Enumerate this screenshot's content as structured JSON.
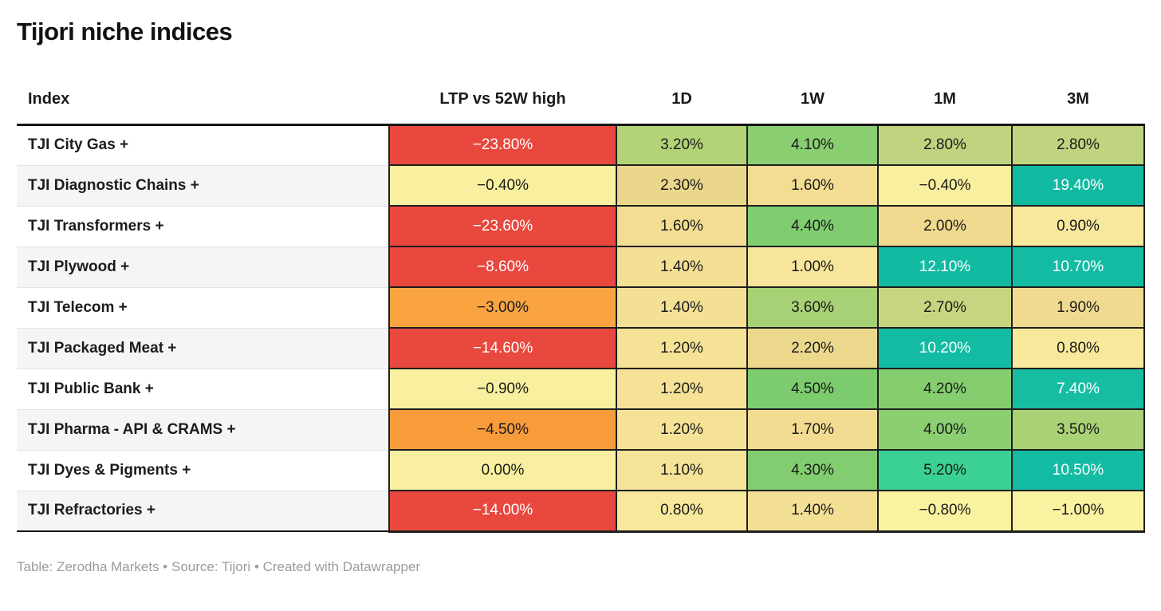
{
  "title": "Tijori niche indices",
  "footer": "Table: Zerodha Markets • Source: Tijori • Created with Datawrapper",
  "accent_colors": {
    "negative_strong": "#e8483e",
    "negative_mild": "#f9a441",
    "neutral": "#f8f09f",
    "positive_mild": "#b3d377",
    "positive_strong": "#14bba3",
    "header_rule": "#161616"
  },
  "table": {
    "columns": [
      "Index",
      "LTP vs 52W high",
      "1D",
      "1W",
      "1M",
      "3M"
    ],
    "rows": [
      {
        "index": "TJI City Gas +",
        "cells": [
          {
            "value": "−23.80%",
            "bg": "#e8483e",
            "fg": "#ffffff"
          },
          {
            "value": "3.20%",
            "bg": "#b3d377",
            "fg": "#1a1a1a"
          },
          {
            "value": "4.10%",
            "bg": "#89ce71",
            "fg": "#1a1a1a"
          },
          {
            "value": "2.80%",
            "bg": "#c0d37e",
            "fg": "#1a1a1a"
          },
          {
            "value": "2.80%",
            "bg": "#c0d37e",
            "fg": "#1a1a1a"
          }
        ]
      },
      {
        "index": "TJI Diagnostic Chains +",
        "cells": [
          {
            "value": "−0.40%",
            "bg": "#f8f09f",
            "fg": "#1a1a1a"
          },
          {
            "value": "2.30%",
            "bg": "#ebd78c",
            "fg": "#1a1a1a"
          },
          {
            "value": "1.60%",
            "bg": "#f3dd92",
            "fg": "#1a1a1a"
          },
          {
            "value": "−0.40%",
            "bg": "#f8f09f",
            "fg": "#1a1a1a"
          },
          {
            "value": "19.40%",
            "bg": "#12b9a1",
            "fg": "#ffffff"
          }
        ]
      },
      {
        "index": "TJI Transformers +",
        "cells": [
          {
            "value": "−23.60%",
            "bg": "#e8483e",
            "fg": "#ffffff"
          },
          {
            "value": "1.60%",
            "bg": "#f3dd92",
            "fg": "#1a1a1a"
          },
          {
            "value": "4.40%",
            "bg": "#7fcd6f",
            "fg": "#1a1a1a"
          },
          {
            "value": "2.00%",
            "bg": "#efd98e",
            "fg": "#1a1a1a"
          },
          {
            "value": "0.90%",
            "bg": "#f7e89c",
            "fg": "#1a1a1a"
          }
        ]
      },
      {
        "index": "TJI Plywood +",
        "cells": [
          {
            "value": "−8.60%",
            "bg": "#e8483e",
            "fg": "#ffffff"
          },
          {
            "value": "1.40%",
            "bg": "#f4e095",
            "fg": "#1a1a1a"
          },
          {
            "value": "1.00%",
            "bg": "#f6e59a",
            "fg": "#1a1a1a"
          },
          {
            "value": "12.10%",
            "bg": "#13baa2",
            "fg": "#ffffff"
          },
          {
            "value": "10.70%",
            "bg": "#14bba3",
            "fg": "#ffffff"
          }
        ]
      },
      {
        "index": "TJI Telecom +",
        "cells": [
          {
            "value": "−3.00%",
            "bg": "#f9a441",
            "fg": "#1a1a1a"
          },
          {
            "value": "1.40%",
            "bg": "#f4e095",
            "fg": "#1a1a1a"
          },
          {
            "value": "3.60%",
            "bg": "#a6d174",
            "fg": "#1a1a1a"
          },
          {
            "value": "2.70%",
            "bg": "#c6d680",
            "fg": "#1a1a1a"
          },
          {
            "value": "1.90%",
            "bg": "#f0da8f",
            "fg": "#1a1a1a"
          }
        ]
      },
      {
        "index": "TJI Packaged Meat +",
        "cells": [
          {
            "value": "−14.60%",
            "bg": "#e8483e",
            "fg": "#ffffff"
          },
          {
            "value": "1.20%",
            "bg": "#f5e296",
            "fg": "#1a1a1a"
          },
          {
            "value": "2.20%",
            "bg": "#ecd88d",
            "fg": "#1a1a1a"
          },
          {
            "value": "10.20%",
            "bg": "#14bba3",
            "fg": "#ffffff"
          },
          {
            "value": "0.80%",
            "bg": "#f7e89c",
            "fg": "#1a1a1a"
          }
        ]
      },
      {
        "index": "TJI Public Bank +",
        "cells": [
          {
            "value": "−0.90%",
            "bg": "#f8f09f",
            "fg": "#1a1a1a"
          },
          {
            "value": "1.20%",
            "bg": "#f5e296",
            "fg": "#1a1a1a"
          },
          {
            "value": "4.50%",
            "bg": "#7ccc6e",
            "fg": "#1a1a1a"
          },
          {
            "value": "4.20%",
            "bg": "#85ce70",
            "fg": "#1a1a1a"
          },
          {
            "value": "7.40%",
            "bg": "#17bda3",
            "fg": "#ffffff"
          }
        ]
      },
      {
        "index": "TJI Pharma - API & CRAMS +",
        "cells": [
          {
            "value": "−4.50%",
            "bg": "#f89b3a",
            "fg": "#1a1a1a"
          },
          {
            "value": "1.20%",
            "bg": "#f5e296",
            "fg": "#1a1a1a"
          },
          {
            "value": "1.70%",
            "bg": "#f2dc91",
            "fg": "#1a1a1a"
          },
          {
            "value": "4.00%",
            "bg": "#8bcf72",
            "fg": "#1a1a1a"
          },
          {
            "value": "3.50%",
            "bg": "#a9d274",
            "fg": "#1a1a1a"
          }
        ]
      },
      {
        "index": "TJI Dyes & Pigments +",
        "cells": [
          {
            "value": "0.00%",
            "bg": "#f8f0a0",
            "fg": "#1a1a1a"
          },
          {
            "value": "1.10%",
            "bg": "#f5e398",
            "fg": "#1a1a1a"
          },
          {
            "value": "4.30%",
            "bg": "#82cd70",
            "fg": "#1a1a1a"
          },
          {
            "value": "5.20%",
            "bg": "#3bd194",
            "fg": "#1a1a1a"
          },
          {
            "value": "10.50%",
            "bg": "#14bba3",
            "fg": "#ffffff"
          }
        ]
      },
      {
        "index": "TJI Refractories +",
        "cells": [
          {
            "value": "−14.00%",
            "bg": "#e8483e",
            "fg": "#ffffff"
          },
          {
            "value": "0.80%",
            "bg": "#f7e89c",
            "fg": "#1a1a1a"
          },
          {
            "value": "1.40%",
            "bg": "#f4e095",
            "fg": "#1a1a1a"
          },
          {
            "value": "−0.80%",
            "bg": "#f9f2a1",
            "fg": "#1a1a1a"
          },
          {
            "value": "−1.00%",
            "bg": "#f9f2a1",
            "fg": "#1a1a1a"
          }
        ]
      }
    ]
  },
  "chart_data": {
    "type": "table",
    "title": "Tijori niche indices",
    "columns": [
      "Index",
      "LTP vs 52W high",
      "1D",
      "1W",
      "1M",
      "3M"
    ],
    "rows": [
      [
        "TJI City Gas +",
        -23.8,
        3.2,
        4.1,
        2.8,
        2.8
      ],
      [
        "TJI Diagnostic Chains +",
        -0.4,
        2.3,
        1.6,
        -0.4,
        19.4
      ],
      [
        "TJI Transformers +",
        -23.6,
        1.6,
        4.4,
        2.0,
        0.9
      ],
      [
        "TJI Plywood +",
        -8.6,
        1.4,
        1.0,
        12.1,
        10.7
      ],
      [
        "TJI Telecom +",
        -3.0,
        1.4,
        3.6,
        2.7,
        1.9
      ],
      [
        "TJI Packaged Meat +",
        -14.6,
        1.2,
        2.2,
        10.2,
        0.8
      ],
      [
        "TJI Public Bank +",
        -0.9,
        1.2,
        4.5,
        4.2,
        7.4
      ],
      [
        "TJI Pharma - API & CRAMS +",
        -4.5,
        1.2,
        1.7,
        4.0,
        3.5
      ],
      [
        "TJI Dyes & Pigments +",
        0.0,
        1.1,
        4.3,
        5.2,
        10.5
      ],
      [
        "TJI Refractories +",
        -14.0,
        0.8,
        1.4,
        -0.8,
        -1.0
      ]
    ],
    "value_unit": "%",
    "color_scale": "red (large negative) → orange → pale yellow (≈0) → yellow-green → green → teal (large positive)"
  }
}
